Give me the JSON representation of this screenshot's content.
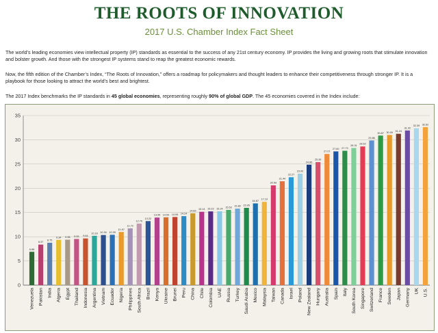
{
  "header": {
    "title": "THE ROOTS OF INNOVATION",
    "subtitle": "2017 U.S. Chamber Index Fact Sheet"
  },
  "intro": {
    "p1": "The world’s leading economies view intellectual property (IP) standards as essential to the success of any 21st century economy. IP provides the living and growing roots that stimulate innovation and bolster growth. And those with the strongest IP systems stand to reap the greatest economic rewards.",
    "p2": "Now, the fifth edition of the Chamber’s Index, “The Roots of Innovation,” offers a roadmap for policymakers and thought leaders to enhance their competitiveness through stronger IP. It is a playbook for those looking to attract the world’s best and brightest.",
    "p3_a": "The 2017 Index benchmarks the IP standards in ",
    "p3_b": "45 global economies",
    "p3_c": ", representing roughly ",
    "p3_d": "90% of global GDP",
    "p3_e": ". The 45 economies covered in the Index include:"
  },
  "chart_data": {
    "type": "bar",
    "categories": [
      "Venezuela",
      "Pakistan",
      "India",
      "Algeria",
      "Egypt",
      "Thailand",
      "Indonesia",
      "Argentina",
      "Vietnam",
      "Ecuador",
      "Nigeria",
      "Philippines",
      "South Africa",
      "Brazil",
      "Kenya",
      "Ukraine",
      "Brunei",
      "Peru",
      "China",
      "Chile",
      "Colombia",
      "UAE",
      "Russia",
      "Turkey",
      "Saudi Arabia",
      "Mexico",
      "Malaysia",
      "Taiwan",
      "Canada",
      "Israel",
      "Poland",
      "New Zealand",
      "Hungary",
      "Australia",
      "Spain",
      "Italy",
      "South Korea",
      "Singapore",
      "Switzerland",
      "France",
      "Sweden",
      "Japan",
      "Germany",
      "UK",
      "U.S."
    ],
    "values": [
      6.88,
      8.37,
      8.75,
      9.34,
      9.38,
      9.53,
      9.64,
      10.18,
      10.34,
      10.39,
      10.97,
      11.72,
      12.7,
      13.22,
      13.95,
      14.0,
      14.06,
      14.24,
      14.83,
      15.14,
      15.22,
      15.24,
      15.53,
      15.8,
      15.95,
      16.87,
      17.19,
      20.59,
      21.44,
      22.27,
      23.0,
      24.86,
      25.39,
      27.07,
      27.6,
      27.73,
      28.31,
      28.62,
      29.86,
      30.87,
      30.99,
      31.24,
      31.92,
      32.39,
      32.62
    ],
    "value_labels": [
      "6.88",
      "8.37",
      "8.75",
      "9.34",
      "9.38",
      "9.53",
      "9.64",
      "10.18",
      "10.34",
      "10.39",
      "10.97",
      "11.72",
      "12.70",
      "13.22",
      "13.95",
      "14.00",
      "14.06",
      "14.24",
      "14.83",
      "15.14",
      "15.22",
      "15.24",
      "15.53",
      "15.80",
      "15.95",
      "16.87",
      "17.19",
      "20.59",
      "21.44",
      "22.27",
      "23.00",
      "24.86",
      "25.39",
      "27.07",
      "27.60",
      "27.73",
      "28.31",
      "28.62",
      "29.86",
      "30.87",
      "30.99",
      "31.24",
      "31.92",
      "32.39",
      "32.62"
    ],
    "colors": [
      "#2e6b34",
      "#b5406f",
      "#5a7fb3",
      "#e7bf2e",
      "#a89a86",
      "#c25584",
      "#c8542f",
      "#2aa69a",
      "#2e4e8e",
      "#2b6fb5",
      "#e89a2c",
      "#a592b8",
      "#c29ab0",
      "#2c5597",
      "#b0418a",
      "#d96f2c",
      "#c0432f",
      "#2d8bc6",
      "#c99a2e",
      "#b8338a",
      "#5a2c85",
      "#8ac8e8",
      "#49a96c",
      "#6fa7d8",
      "#1f8a4c",
      "#1f6fae",
      "#f0b43c",
      "#d53a6d",
      "#e56f3d",
      "#2a9ad6",
      "#9cd0e8",
      "#1a3d7c",
      "#d84f6b",
      "#ef8a3a",
      "#1b57a8",
      "#2e8c4a",
      "#7fcf9a",
      "#e23d55",
      "#5e8fd0",
      "#2d9b45",
      "#e89a28",
      "#7a3b2c",
      "#6a4ca3",
      "#a8d8f0",
      "#f4a33c"
    ],
    "ylim": [
      0,
      35
    ],
    "yticks": [
      0,
      5,
      10,
      15,
      20,
      25,
      30,
      35
    ],
    "grid": true
  }
}
